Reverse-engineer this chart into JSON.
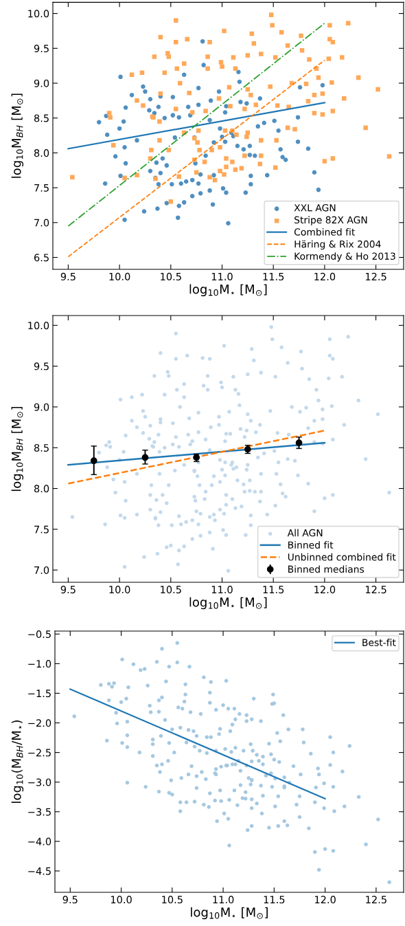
{
  "chart_data": [
    {
      "type": "scatter",
      "xlabel": "log$_{10}$M$_{⋆}$ [M$_{⊙}$]",
      "ylabel": "log$_{10}$M$_{BH}$ [M$_{⊙}$]",
      "xlim": [
        9.35,
        12.77
      ],
      "ylim": [
        6.33,
        10.16
      ],
      "xticks": [
        9.5,
        {
          "value": 10,
          "label": "10.0"
        },
        10.5,
        {
          "value": 11,
          "label": "11.0"
        },
        11.5,
        {
          "value": 12,
          "label": "12.0"
        },
        12.5
      ],
      "yticks": [
        6.5,
        {
          "value": 7,
          "label": "7.0"
        },
        7.5,
        {
          "value": 8,
          "label": "8.0"
        },
        8.5,
        {
          "value": 9,
          "label": "9.0"
        },
        9.5,
        {
          "value": 10,
          "label": "10.0"
        }
      ],
      "grid": false,
      "legend": "bottom right",
      "series": [
        {
          "name": "XXL AGN",
          "type": "scatter",
          "marker": "circle",
          "color": "#4f8fc0",
          "x": [
            10.01,
            10.81,
            10.82,
            10.63,
            10.23,
            10.25,
            10.12,
            10.4,
            10.52,
            10.77,
            10.97,
            11.16,
            11.17,
            11.76,
            11.98,
            9.8,
            9.87,
            9.88,
            10.0,
            10.04,
            10.06,
            10.3,
            10.34,
            10.38,
            10.44,
            10.52,
            10.58,
            10.69,
            10.67,
            10.77,
            10.89,
            11.04,
            11.03,
            11.24,
            11.37,
            11.51,
            11.74,
            11.74,
            11.84,
            11.57,
            11.59,
            11.62,
            11.55,
            10.17,
            10.05,
            9.96,
            10.06,
            10.01,
            9.86,
            10.3,
            10.35,
            10.38,
            10.4,
            10.46,
            10.51,
            10.6,
            10.65,
            10.71,
            10.77,
            10.79,
            10.88,
            10.91,
            11.01,
            11.04,
            11.28,
            11.28,
            11.44,
            11.9,
            11.94,
            10.05,
            10.24,
            10.37,
            10.46,
            10.58,
            10.57,
            10.63,
            10.71,
            11.06,
            11.23,
            10.92,
            11.0,
            11.09,
            11.11,
            11.21,
            11.27,
            11.32,
            11.27,
            11.15,
            11.03,
            10.84,
            10.74,
            10.79,
            10.92,
            10.73,
            10.54,
            10.42,
            10.36,
            10.29,
            10.88,
            10.98,
            11.18,
            11.35,
            11.41
          ],
          "values": [
            9.09,
            9.6,
            9.26,
            9.12,
            8.95,
            8.88,
            8.83,
            8.81,
            8.8,
            8.93,
            8.88,
            9.16,
            9.02,
            8.94,
            8.97,
            8.44,
            8.53,
            8.26,
            8.35,
            8.45,
            8.65,
            8.77,
            8.57,
            8.66,
            8.5,
            8.54,
            8.51,
            8.54,
            8.66,
            8.69,
            8.75,
            8.67,
            8.58,
            8.71,
            8.78,
            8.46,
            8.51,
            8.16,
            8.06,
            8.05,
            7.94,
            7.9,
            8.32,
            8.18,
            8.08,
            7.95,
            7.85,
            7.67,
            7.56,
            7.74,
            7.64,
            7.55,
            7.71,
            7.82,
            7.55,
            7.56,
            7.59,
            7.61,
            7.56,
            7.42,
            7.46,
            7.26,
            7.49,
            7.43,
            7.55,
            7.67,
            7.68,
            7.72,
            7.47,
            7.04,
            7.16,
            7.2,
            7.28,
            7.24,
            7.07,
            7.29,
            7.38,
            6.99,
            7.43,
            8.15,
            8.23,
            8.29,
            8.24,
            8.05,
            8.1,
            7.96,
            7.97,
            8.1,
            8.16,
            7.96,
            7.85,
            7.69,
            7.68,
            8.22,
            8.22,
            7.92,
            7.86,
            8.61,
            8.47,
            8.35,
            8.73,
            8.38,
            8.43
          ]
        },
        {
          "name": "Stripe 82X AGN",
          "type": "scatter",
          "marker": "square",
          "color": "#ffa858",
          "x": [
            9.54,
            10.55,
            10.4,
            10.55,
            10.66,
            10.88,
            11.02,
            11.29,
            11.48,
            11.49,
            12.05,
            12.23,
            12.05,
            12.08,
            11.58,
            11.77,
            11.64,
            11.78,
            11.31,
            10.34,
            10.47,
            10.48,
            10.56,
            10.63,
            10.86,
            10.99,
            11.11,
            11.25,
            11.38,
            11.52,
            11.85,
            12.17,
            12.04,
            10.12,
            10.22,
            10.44,
            10.86,
            11.0,
            11.13,
            11.92,
            12.33,
            12.07,
            12.52,
            10.59,
            10.4,
            10.68,
            11.07,
            11.25,
            11.47,
            11.68,
            11.98,
            12.19,
            11.9,
            10.17,
            9.9,
            9.91,
            9.94,
            10.23,
            10.32,
            10.39,
            10.71,
            10.84,
            10.97,
            11.08,
            11.22,
            11.33,
            11.54,
            11.65,
            11.84,
            11.9,
            12.08,
            11.98,
            12.4,
            12.63,
            12.0,
            12.08,
            11.71,
            11.64,
            11.53,
            11.38,
            11.52,
            11.37,
            11.38,
            11.25,
            11.24,
            11.14,
            11.1,
            11.03,
            10.9,
            10.98,
            10.78,
            10.76,
            10.73,
            10.77,
            10.63,
            10.48,
            10.39,
            10.31,
            10.3,
            10.17,
            10.05,
            10.35,
            10.58,
            10.75,
            10.88,
            10.93,
            10.98,
            11.02,
            11.04,
            11.13,
            11.19,
            11.1,
            11.04,
            10.5,
            10.83,
            10.73,
            11.22,
            10.33,
            10.55,
            11.28,
            11.94,
            11.82
          ],
          "values": [
            7.65,
            9.9,
            9.66,
            9.59,
            9.63,
            9.59,
            9.75,
            9.71,
            9.98,
            9.83,
            9.83,
            9.86,
            9.63,
            9.59,
            9.73,
            9.68,
            9.54,
            9.47,
            9.57,
            9.38,
            9.43,
            9.38,
            9.21,
            9.28,
            9.38,
            9.3,
            9.37,
            9.4,
            9.42,
            9.37,
            9.34,
            9.37,
            9.35,
            9.12,
            9.15,
            9.15,
            9.21,
            9.24,
            9.21,
            9.21,
            9.08,
            9.01,
            8.91,
            9.0,
            8.85,
            8.86,
            8.94,
            8.91,
            8.95,
            9.0,
            8.85,
            8.78,
            8.83,
            8.75,
            8.57,
            8.51,
            8.11,
            8.68,
            8.52,
            8.45,
            8.58,
            8.6,
            8.78,
            8.67,
            8.63,
            8.69,
            8.68,
            8.66,
            8.74,
            8.57,
            8.6,
            8.55,
            8.36,
            7.95,
            7.88,
            7.92,
            8.34,
            8.36,
            8.18,
            8.18,
            7.79,
            7.84,
            7.96,
            8.29,
            8.23,
            8.26,
            8.32,
            8.32,
            8.04,
            8.08,
            8.04,
            8.15,
            8.21,
            8.32,
            8.29,
            8.04,
            8.18,
            8.04,
            7.92,
            7.68,
            7.64,
            7.63,
            7.66,
            7.72,
            7.65,
            7.61,
            7.74,
            7.69,
            7.8,
            7.76,
            7.78,
            7.87,
            7.92,
            7.3,
            7.87,
            7.9,
            7.96,
            8.51,
            8.63,
            8.83,
            9.08,
            8.99
          ]
        },
        {
          "name": "Combined fit",
          "type": "line",
          "line_style": "solid",
          "color": "#1f77b4",
          "x": [
            9.5,
            12.0
          ],
          "values": [
            8.06,
            8.72
          ]
        },
        {
          "name": "Häring & Rix 2004",
          "type": "line",
          "line_style": "dashed",
          "color": "#ff7f0e",
          "x": [
            9.5,
            12.0
          ],
          "values": [
            6.51,
            9.33
          ]
        },
        {
          "name": "Kormendy & Ho 2013",
          "type": "line",
          "line_style": "dashdot",
          "color": "#2ca02c",
          "x": [
            9.5,
            12.0
          ],
          "values": [
            6.95,
            9.86
          ]
        }
      ]
    },
    {
      "type": "scatter",
      "xlabel": "log$_{10}$M$_{⋆}$ [M$_{⊙}$]",
      "ylabel": "log$_{10}$M$_{BH}$ [M$_{⊙}$]",
      "xlim": [
        9.35,
        12.77
      ],
      "ylim": [
        6.85,
        10.12
      ],
      "xticks": [
        9.5,
        {
          "value": 10,
          "label": "10.0"
        },
        10.5,
        {
          "value": 11,
          "label": "11.0"
        },
        11.5,
        {
          "value": 12,
          "label": "12.0"
        },
        12.5
      ],
      "yticks": [
        {
          "value": 7,
          "label": "7.0"
        },
        7.5,
        {
          "value": 8,
          "label": "8.0"
        },
        8.5,
        {
          "value": 9,
          "label": "9.0"
        },
        9.5,
        {
          "value": 10,
          "label": "10.0"
        }
      ],
      "grid": false,
      "legend": "bottom right",
      "series": [
        {
          "name": "All AGN",
          "type": "scatter",
          "marker": "circle",
          "color": "#c3d9ec",
          "x": [
            10.01,
            10.81,
            10.82,
            10.63,
            10.23,
            10.25,
            10.12,
            10.4,
            10.52,
            10.77,
            10.97,
            11.16,
            11.17,
            11.76,
            11.98,
            9.8,
            9.87,
            9.88,
            10.0,
            10.04,
            10.06,
            10.3,
            10.34,
            10.38,
            10.44,
            10.52,
            10.58,
            10.69,
            10.67,
            10.77,
            10.89,
            11.04,
            11.03,
            11.24,
            11.37,
            11.51,
            11.74,
            11.74,
            11.84,
            11.57,
            11.59,
            11.62,
            11.55,
            10.17,
            10.05,
            9.96,
            10.06,
            10.01,
            9.86,
            10.3,
            10.35,
            10.38,
            10.4,
            10.46,
            10.51,
            10.6,
            10.65,
            10.71,
            10.77,
            10.79,
            10.88,
            10.91,
            11.01,
            11.04,
            11.28,
            11.28,
            11.44,
            11.9,
            11.94,
            10.05,
            10.24,
            10.37,
            10.46,
            10.58,
            10.57,
            10.63,
            10.71,
            11.06,
            11.23,
            10.92,
            11.0,
            11.09,
            11.11,
            11.21,
            11.27,
            11.32,
            11.27,
            11.15,
            11.03,
            10.84,
            10.74,
            10.79,
            10.92,
            10.73,
            10.54,
            10.42,
            10.36,
            10.29,
            10.88,
            10.98,
            11.18,
            11.35,
            11.41,
            9.54,
            10.55,
            10.4,
            10.55,
            10.66,
            10.88,
            11.02,
            11.29,
            11.48,
            11.49,
            12.05,
            12.23,
            12.05,
            12.08,
            11.58,
            11.77,
            11.64,
            11.78,
            11.31,
            10.34,
            10.47,
            10.48,
            10.56,
            10.63,
            10.86,
            10.99,
            11.11,
            11.25,
            11.38,
            11.52,
            11.85,
            12.17,
            12.04,
            10.12,
            10.22,
            10.44,
            10.86,
            11.0,
            11.13,
            11.92,
            12.33,
            12.07,
            12.52,
            10.59,
            10.4,
            10.68,
            11.07,
            11.25,
            11.47,
            11.68,
            11.98,
            12.19,
            11.9,
            10.17,
            9.9,
            9.91,
            9.94,
            10.23,
            10.32,
            10.39,
            10.71,
            10.84,
            10.97,
            11.08,
            11.22,
            11.33,
            11.54,
            11.65,
            11.84,
            11.9,
            12.08,
            11.98,
            12.4,
            12.63,
            12.0,
            12.08,
            11.71,
            11.64,
            11.53,
            11.38,
            11.52,
            11.37,
            11.38,
            11.25,
            11.24,
            11.14,
            11.1,
            11.03,
            10.9,
            10.98,
            10.78,
            10.76,
            10.73,
            10.77,
            10.63,
            10.48,
            10.39,
            10.31,
            10.3,
            10.17,
            10.05,
            10.35,
            10.58,
            10.75,
            10.88,
            10.93,
            10.98,
            11.02,
            11.04,
            11.13,
            11.19,
            11.1,
            11.04,
            10.5,
            10.83,
            10.73,
            11.22,
            10.33,
            10.55,
            11.28,
            11.94,
            11.82
          ],
          "values": [
            9.09,
            9.6,
            9.26,
            9.12,
            8.95,
            8.88,
            8.83,
            8.81,
            8.8,
            8.93,
            8.88,
            9.16,
            9.02,
            8.94,
            8.97,
            8.44,
            8.53,
            8.26,
            8.35,
            8.45,
            8.65,
            8.77,
            8.57,
            8.66,
            8.5,
            8.54,
            8.51,
            8.54,
            8.66,
            8.69,
            8.75,
            8.67,
            8.58,
            8.71,
            8.78,
            8.46,
            8.51,
            8.16,
            8.06,
            8.05,
            7.94,
            7.9,
            8.32,
            8.18,
            8.08,
            7.95,
            7.85,
            7.67,
            7.56,
            7.74,
            7.64,
            7.55,
            7.71,
            7.82,
            7.55,
            7.56,
            7.59,
            7.61,
            7.56,
            7.42,
            7.46,
            7.26,
            7.49,
            7.43,
            7.55,
            7.67,
            7.68,
            7.72,
            7.47,
            7.04,
            7.16,
            7.2,
            7.28,
            7.24,
            7.07,
            7.29,
            7.38,
            6.99,
            7.43,
            8.15,
            8.23,
            8.29,
            8.24,
            8.05,
            8.1,
            7.96,
            7.97,
            8.1,
            8.16,
            7.96,
            7.85,
            7.69,
            7.68,
            8.22,
            8.22,
            7.92,
            7.86,
            8.61,
            8.47,
            8.35,
            8.73,
            8.38,
            8.43,
            7.65,
            9.9,
            9.66,
            9.59,
            9.63,
            9.59,
            9.75,
            9.71,
            9.98,
            9.83,
            9.83,
            9.86,
            9.63,
            9.59,
            9.73,
            9.68,
            9.54,
            9.47,
            9.57,
            9.38,
            9.43,
            9.38,
            9.21,
            9.28,
            9.38,
            9.3,
            9.37,
            9.4,
            9.42,
            9.37,
            9.34,
            9.37,
            9.35,
            9.12,
            9.15,
            9.15,
            9.21,
            9.24,
            9.21,
            9.21,
            9.08,
            9.01,
            8.91,
            9.0,
            8.85,
            8.86,
            8.94,
            8.91,
            8.95,
            9.0,
            8.85,
            8.78,
            8.83,
            8.75,
            8.57,
            8.51,
            8.11,
            8.68,
            8.52,
            8.45,
            8.58,
            8.6,
            8.78,
            8.67,
            8.63,
            8.69,
            8.68,
            8.66,
            8.74,
            8.57,
            8.6,
            8.55,
            8.36,
            7.95,
            7.88,
            7.92,
            8.34,
            8.36,
            8.18,
            8.18,
            7.79,
            7.84,
            7.96,
            8.29,
            8.23,
            8.26,
            8.32,
            8.32,
            8.04,
            8.08,
            8.04,
            8.15,
            8.21,
            8.32,
            8.29,
            8.04,
            8.18,
            8.04,
            7.92,
            7.68,
            7.64,
            7.63,
            7.66,
            7.72,
            7.65,
            7.61,
            7.74,
            7.69,
            7.8,
            7.76,
            7.78,
            7.87,
            7.92,
            7.3,
            7.87,
            7.9,
            7.96,
            8.51,
            8.63,
            8.83,
            9.08,
            8.99
          ]
        },
        {
          "name": "Binned fit",
          "type": "line",
          "line_style": "solid",
          "color": "#1f77b4",
          "x": [
            9.5,
            12.0
          ],
          "values": [
            8.29,
            8.56
          ]
        },
        {
          "name": "Unbinned combined fit",
          "type": "line",
          "line_style": "dashed",
          "color": "#ff7f0e",
          "x": [
            9.5,
            12.0
          ],
          "values": [
            8.06,
            8.71
          ]
        },
        {
          "name": "Binned medians",
          "type": "scatter",
          "marker": "circle",
          "color": "#000000",
          "x": [
            9.75,
            10.25,
            10.75,
            11.25,
            11.75
          ],
          "values": [
            8.34,
            8.38,
            8.38,
            8.48,
            8.56
          ],
          "errors": [
            [
              8.17,
              8.52
            ],
            [
              8.3,
              8.47
            ],
            [
              8.33,
              8.42
            ],
            [
              8.43,
              8.53
            ],
            [
              8.49,
              8.63
            ]
          ]
        }
      ]
    },
    {
      "type": "scatter",
      "xlabel": "log$_{10}$M$_{⋆}$ [M$_{⊙}$]",
      "ylabel": "log$_{10}$(M$_{BH}$/M$_{⋆}$)",
      "xlim": [
        9.35,
        12.77
      ],
      "ylim": [
        -4.86,
        -0.45
      ],
      "xticks": [
        9.5,
        {
          "value": 10,
          "label": "10.0"
        },
        10.5,
        {
          "value": 11,
          "label": "11.0"
        },
        11.5,
        {
          "value": 12,
          "label": "12.0"
        },
        12.5
      ],
      "yticks": [
        {
          "value": -4.5,
          "label": "−4.5"
        },
        {
          "value": -4.0,
          "label": "−4.0"
        },
        {
          "value": -3.5,
          "label": "−3.5"
        },
        {
          "value": -3.0,
          "label": "−3.0"
        },
        {
          "value": -2.5,
          "label": "−2.5"
        },
        {
          "value": -2.0,
          "label": "−2.0"
        },
        {
          "value": -1.5,
          "label": "−1.5"
        },
        {
          "value": -1.0,
          "label": "−1.0"
        },
        {
          "value": -0.5,
          "label": "−0.5"
        }
      ],
      "grid": false,
      "legend": "top right",
      "series": [
        {
          "type": "scatter",
          "marker": "circle",
          "color": "#a5c8e1",
          "x": [
            10.55,
            10.4,
            10.01,
            10.12,
            10.35,
            10.47,
            10.55,
            10.67,
            10.19,
            10.23,
            10.81,
            11.03,
            10.88,
            10.44,
            9.8,
            9.88,
            9.93,
            9.91,
            10.07,
            10.26,
            10.63,
            9.54,
            9.86,
            9.88,
            10.05,
            10.0,
            9.95,
            9.96,
            10.06,
            10.06,
            10.01,
            10.06,
            10.18,
            10.06,
            10.24,
            10.37,
            10.47,
            10.5,
            10.58,
            10.64,
            10.58,
            10.72,
            10.81,
            10.94,
            11.01,
            11.05,
            11.06,
            11.24,
            11.28,
            11.45,
            11.54,
            11.63,
            11.84,
            11.9,
            11.94,
            12.0,
            12.08,
            12.4,
            12.52,
            12.63,
            12.33,
            12.19,
            12.24,
            12.17,
            12.05,
            12.08,
            12.05,
            11.86,
            11.78,
            11.79,
            11.64,
            11.59,
            11.49,
            11.48,
            11.5,
            11.3,
            11.53,
            11.56,
            11.45,
            11.69,
            11.76,
            11.93,
            11.94,
            11.99,
            11.91,
            12.08,
            11.9,
            11.99,
            12.09,
            11.72,
            11.75,
            11.38,
            11.51,
            11.33,
            11.28,
            11.14,
            10.98,
            10.86,
            10.74,
            10.87,
            10.97,
            11.11,
            11.22,
            11.28,
            11.22,
            11.39,
            11.54,
            11.6,
            11.48,
            11.6,
            11.65,
            11.28,
            11.25,
            11.17,
            11.17,
            11.12,
            11.03,
            10.92,
            10.93,
            10.79,
            10.69,
            10.59,
            10.49,
            10.38,
            10.35,
            10.46,
            10.4,
            10.31,
            10.31,
            10.31,
            10.39,
            10.43,
            10.37,
            10.29,
            10.28,
            10.37,
            10.4,
            10.56,
            10.6,
            10.62,
            10.63,
            10.68,
            10.78,
            10.87,
            10.87,
            10.93,
            11.0,
            11.05,
            11.11,
            11.16,
            11.23,
            11.23,
            11.28,
            11.37,
            11.12,
            11.09,
            11.07,
            10.97,
            10.96,
            10.88,
            10.84,
            10.74,
            10.71,
            10.66,
            10.58,
            10.5,
            10.47,
            10.52,
            10.64,
            10.72,
            10.77,
            10.84,
            10.93,
            11.02,
            11.08,
            11.12,
            11.2,
            11.27,
            11.29,
            11.33,
            11.39,
            11.47,
            11.5,
            11.55,
            11.39,
            11.35,
            11.28,
            11.23,
            11.15,
            11.09,
            11.04,
            10.98,
            10.93,
            10.83,
            10.74,
            10.66,
            11.28,
            11.27,
            11.37,
            11.42,
            11.47,
            11.51,
            11.6,
            11.6,
            11.75,
            11.19,
            11.06,
            10.92
          ],
          "values": [
            -0.65,
            -0.75,
            -0.93,
            -1.01,
            -0.97,
            -1.05,
            -0.98,
            -1.05,
            -1.11,
            -1.09,
            -1.23,
            -1.29,
            -1.31,
            -1.3,
            -1.36,
            -1.34,
            -1.33,
            -1.39,
            -1.4,
            -1.37,
            -1.35,
            -1.89,
            -2.3,
            -1.62,
            -1.59,
            -1.65,
            -1.83,
            -2.01,
            -1.98,
            -2.21,
            -2.34,
            -2.41,
            -2.5,
            -3.01,
            -3.08,
            -3.16,
            -3.18,
            -3.21,
            -3.34,
            -3.34,
            -3.49,
            -3.33,
            -3.38,
            -3.66,
            -3.53,
            -3.62,
            -4.07,
            -3.81,
            -3.74,
            -3.77,
            -3.74,
            -3.73,
            -3.78,
            -4.18,
            -4.48,
            -4.13,
            -4.16,
            -4.05,
            -3.63,
            -4.69,
            -3.25,
            -3.41,
            -2.39,
            -2.82,
            -2.24,
            -2.5,
            -2.71,
            -2.52,
            -2.11,
            -2.33,
            -2.11,
            -1.87,
            -1.52,
            -1.68,
            -1.67,
            -1.59,
            -2.17,
            -2.31,
            -2.35,
            -2.73,
            -2.87,
            -2.77,
            -2.87,
            -3.02,
            -3.09,
            -3.08,
            -3.34,
            -3.44,
            -3.49,
            -3.38,
            -3.59,
            -3.53,
            -3.41,
            -3.36,
            -3.44,
            -3.39,
            -3.32,
            -3.42,
            -3.1,
            -3.19,
            -3.14,
            -3.14,
            -3.17,
            -3.29,
            -3.28,
            -3.23,
            -3.24,
            -3.66,
            -3.08,
            -3.07,
            -3.01,
            -2.97,
            -2.93,
            -3.05,
            -2.81,
            -2.7,
            -2.72,
            -2.85,
            -2.78,
            -2.83,
            -2.73,
            -2.93,
            -2.97,
            -2.83,
            -2.72,
            -2.64,
            -2.7,
            -2.56,
            -2.36,
            -2.28,
            -2.22,
            -1.95,
            -1.81,
            -1.82,
            -1.71,
            -1.62,
            -1.57,
            -1.74,
            -1.76,
            -1.64,
            -1.52,
            -1.82,
            -1.85,
            -1.49,
            -1.66,
            -1.78,
            -1.7,
            -1.76,
            -1.76,
            -1.85,
            -1.87,
            -1.97,
            -1.94,
            -1.97,
            -1.94,
            -2.03,
            -2.14,
            -2.1,
            -2.19,
            -2.24,
            -2.24,
            -2.22,
            -2.14,
            -2.12,
            -2.08,
            -2.11,
            -2.34,
            -2.5,
            -2.33,
            -2.4,
            -2.47,
            -2.51,
            -2.47,
            -2.44,
            -2.49,
            -2.42,
            -2.47,
            -2.36,
            -2.47,
            -2.54,
            -2.57,
            -2.53,
            -2.62,
            -2.66,
            -2.7,
            -2.64,
            -2.65,
            -2.72,
            -2.64,
            -2.7,
            -2.72,
            -2.74,
            -2.87,
            -2.95,
            -2.9,
            -2.87,
            -2.96,
            -3.04,
            -3.06,
            -2.89,
            -2.85,
            -2.94,
            -3.09,
            -2.92,
            -3.24,
            -3.27,
            -3.3,
            -3.31
          ]
        },
        {
          "name": "Best-fit",
          "type": "line",
          "line_style": "solid",
          "color": "#1f77b4",
          "x": [
            9.5,
            12.0
          ],
          "values": [
            -1.43,
            -3.28
          ]
        }
      ]
    }
  ]
}
